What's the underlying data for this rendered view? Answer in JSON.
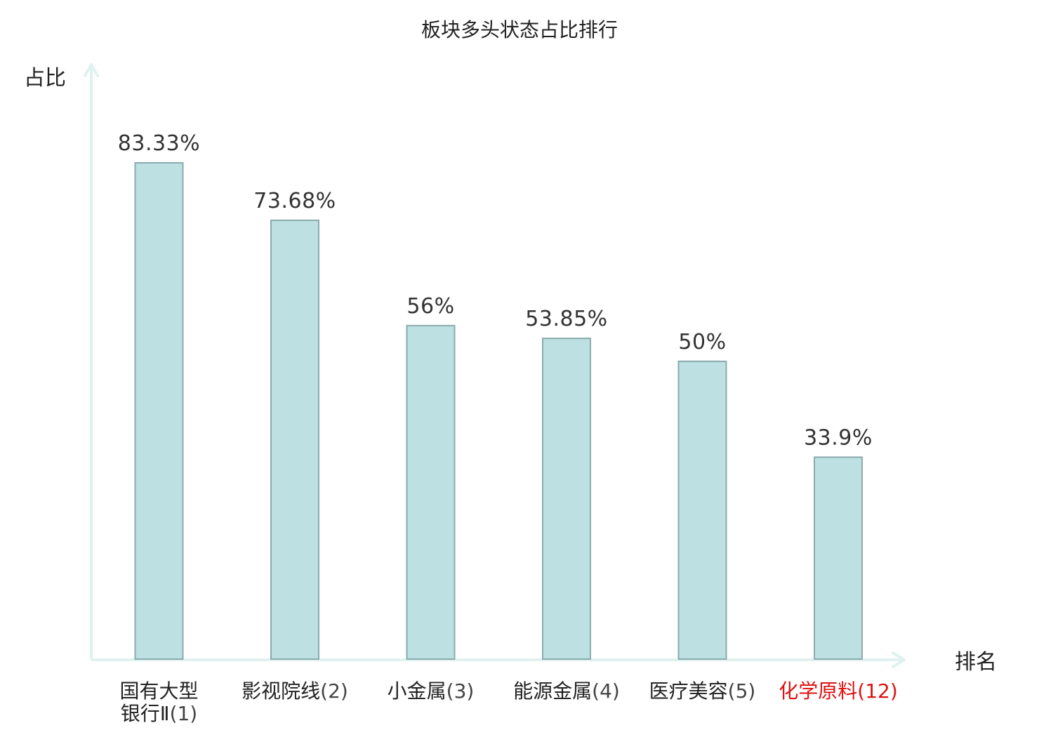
{
  "chart_data": {
    "type": "bar",
    "title": "板块多头状态占比排行",
    "ylabel": "占比",
    "xlabel": "排名",
    "categories": [
      {
        "name": "国有大型银行Ⅱ",
        "rank": "(1)",
        "lines": [
          "国有大型",
          "银行Ⅱ"
        ]
      },
      {
        "name": "影视院线",
        "rank": "(2)",
        "lines": [
          "影视院线"
        ]
      },
      {
        "name": "小金属",
        "rank": "(3)",
        "lines": [
          "小金属"
        ]
      },
      {
        "name": "能源金属",
        "rank": "(4)",
        "lines": [
          "能源金属"
        ]
      },
      {
        "name": "医疗美容",
        "rank": "(5)",
        "lines": [
          "医疗美容"
        ]
      },
      {
        "name": "化学原料",
        "rank": "(12)",
        "lines": [
          "化学原料"
        ],
        "highlight": true
      }
    ],
    "values": [
      83.33,
      73.68,
      56,
      53.85,
      50,
      33.9
    ],
    "value_labels": [
      "83.33%",
      "73.68%",
      "56%",
      "53.85%",
      "50%",
      "33.9%"
    ],
    "ylim": [
      0,
      100
    ],
    "grid": false,
    "colors": {
      "bar_fill": "#bde0e2",
      "bar_stroke": "#8aabae",
      "axis": "#dff2ef",
      "highlight_text": "#dd1111"
    }
  }
}
